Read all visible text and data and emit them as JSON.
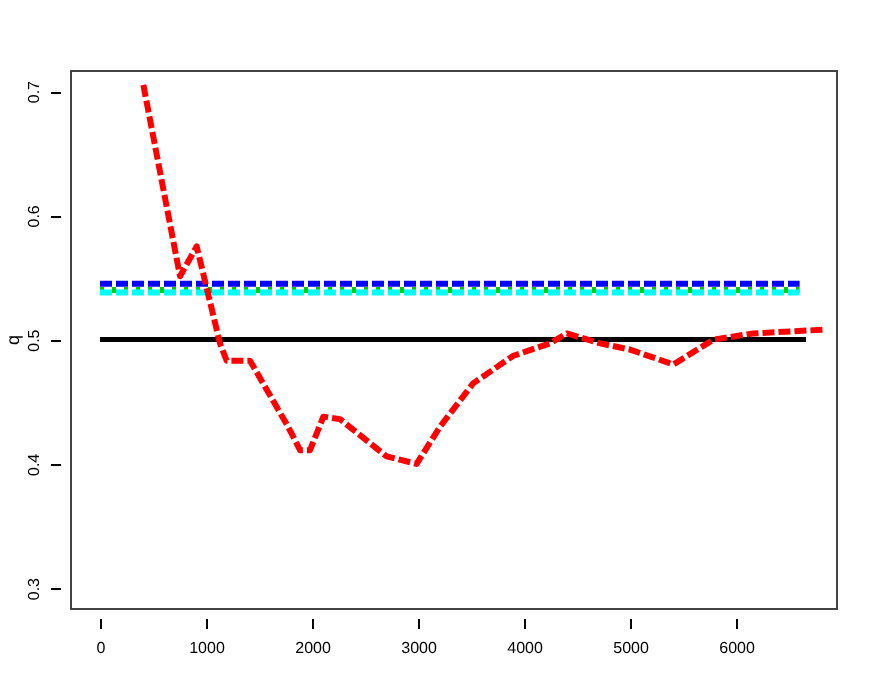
{
  "chart_data": {
    "type": "line",
    "ylabel": "q",
    "xlim": [
      -283,
      6943
    ],
    "ylim": [
      0.284,
      0.717
    ],
    "xticks": [
      0,
      1000,
      2000,
      3000,
      4000,
      5000,
      6000
    ],
    "yticks": [
      0.3,
      0.4,
      0.5,
      0.6,
      0.7
    ],
    "grid": false,
    "series": [
      {
        "color": "#000000",
        "line_style": "solid",
        "x": [
          0,
          6660
        ],
        "values": [
          0.5,
          0.5
        ]
      },
      {
        "color": "#0000ff",
        "line_style": "dashed",
        "x": [
          0,
          6600
        ],
        "values": [
          0.545,
          0.545
        ]
      },
      {
        "color": "#00cd00",
        "line_style": "dotted",
        "x": [
          0,
          6600
        ],
        "values": [
          0.54,
          0.54
        ]
      },
      {
        "color": "#00ffff",
        "line_style": "dashed",
        "x": [
          0,
          6600
        ],
        "values": [
          0.538,
          0.538
        ]
      },
      {
        "color": "#ff0000",
        "line_style": "dashed",
        "x": [
          409,
          755,
          912,
          1132,
          1195,
          1415,
          1774,
          1887,
          1981,
          2107,
          2264,
          2704,
          2987,
          3208,
          3522,
          3899,
          4245,
          4403,
          4717,
          5000,
          5409,
          5786,
          6164,
          6824
        ],
        "values": [
          0.705,
          0.551,
          0.575,
          0.497,
          0.483,
          0.483,
          0.43,
          0.411,
          0.411,
          0.438,
          0.436,
          0.406,
          0.4,
          0.43,
          0.465,
          0.487,
          0.497,
          0.505,
          0.497,
          0.492,
          0.48,
          0.5,
          0.505,
          0.508
        ]
      }
    ]
  }
}
